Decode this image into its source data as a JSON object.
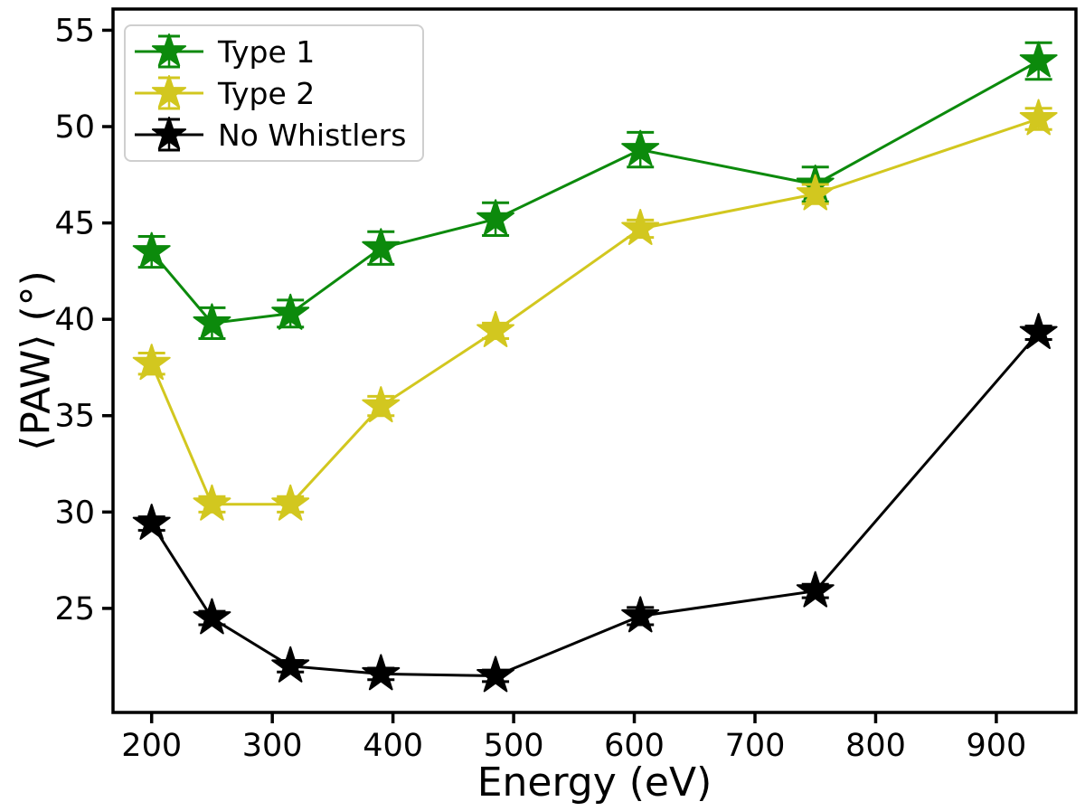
{
  "figure": {
    "background": "#ffffff"
  },
  "chart_data": {
    "type": "line",
    "title": "",
    "xlabel": "Energy (eV)",
    "ylabel": "⟨PAW⟩ (°)",
    "marker": "star",
    "error_bars": true,
    "grid": false,
    "legend_position": "upper-left",
    "x": [
      200,
      250,
      315,
      390,
      485,
      605,
      750,
      935
    ],
    "xlim": [
      168,
      966
    ],
    "ylim": [
      19.6,
      56.1
    ],
    "xticks": [
      200,
      300,
      400,
      500,
      600,
      700,
      800,
      900
    ],
    "yticks": [
      25,
      30,
      35,
      40,
      45,
      50,
      55
    ],
    "series": [
      {
        "name": "Type 1",
        "color": "#0c8a0c",
        "values": [
          43.5,
          39.8,
          40.3,
          43.7,
          45.2,
          48.8,
          47.0,
          53.4
        ],
        "errors": [
          0.8,
          0.8,
          0.7,
          0.85,
          0.85,
          0.9,
          0.9,
          0.95
        ]
      },
      {
        "name": "Type 2",
        "color": "#d2c71f",
        "values": [
          37.7,
          30.4,
          30.4,
          35.5,
          39.4,
          44.7,
          46.5,
          50.4
        ],
        "errors": [
          0.55,
          0.4,
          0.4,
          0.5,
          0.4,
          0.45,
          0.5,
          0.55
        ]
      },
      {
        "name": "No Whistlers",
        "color": "#000000",
        "values": [
          29.4,
          24.5,
          22.0,
          21.6,
          21.5,
          24.6,
          25.9,
          39.3
        ],
        "errors": [
          0.35,
          0.35,
          0.3,
          0.3,
          0.3,
          0.45,
          0.35,
          0.35
        ]
      }
    ]
  }
}
